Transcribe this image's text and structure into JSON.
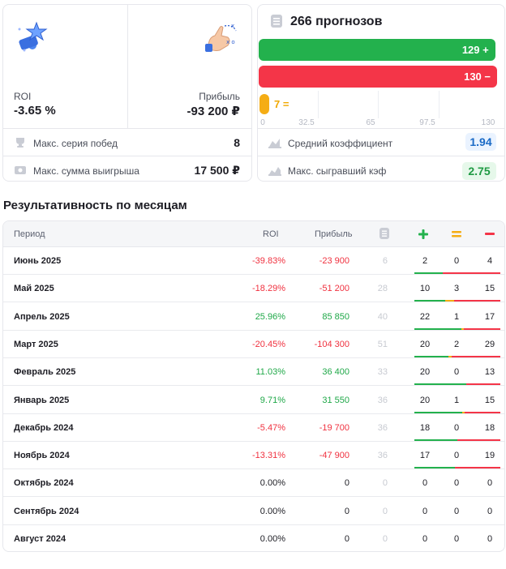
{
  "summary": {
    "roi_label": "ROI",
    "roi_value": "-3.65 %",
    "profit_label": "Прибыль",
    "profit_value": "-93 200 ₽",
    "win_streak_label": "Макс. серия побед",
    "win_streak_value": "8",
    "max_win_label": "Макс. сумма выигрыша",
    "max_win_value": "17 500 ₽"
  },
  "predictions": {
    "title": "266 прогнозов",
    "wins_label": "129 +",
    "losses_label": "130 −",
    "draws_label": "7 =",
    "axis_ticks": [
      "0",
      "32.5",
      "65",
      "97.5",
      "130"
    ],
    "wins": 129,
    "losses": 130,
    "draws": 7,
    "axis_max": 130,
    "avg_coef_label": "Средний коэффициент",
    "avg_coef_value": "1.94",
    "max_coef_label": "Макс. сыгравший кэф",
    "max_coef_value": "2.75"
  },
  "monthly": {
    "title": "Результативность по месяцам",
    "headers": {
      "period": "Период",
      "roi": "ROI",
      "profit": "Прибыль"
    },
    "rows": [
      {
        "period": "Июнь 2025",
        "roi": "-39.83%",
        "profit": "-23 900",
        "total": "6",
        "win": "2",
        "draw": "0",
        "loss": "4",
        "sign": "neg"
      },
      {
        "period": "Май 2025",
        "roi": "-18.29%",
        "profit": "-51 200",
        "total": "28",
        "win": "10",
        "draw": "3",
        "loss": "15",
        "sign": "neg"
      },
      {
        "period": "Апрель 2025",
        "roi": "25.96%",
        "profit": "85 850",
        "total": "40",
        "win": "22",
        "draw": "1",
        "loss": "17",
        "sign": "pos"
      },
      {
        "period": "Март 2025",
        "roi": "-20.45%",
        "profit": "-104 300",
        "total": "51",
        "win": "20",
        "draw": "2",
        "loss": "29",
        "sign": "neg"
      },
      {
        "period": "Февраль 2025",
        "roi": "11.03%",
        "profit": "36 400",
        "total": "33",
        "win": "20",
        "draw": "0",
        "loss": "13",
        "sign": "pos"
      },
      {
        "period": "Январь 2025",
        "roi": "9.71%",
        "profit": "31 550",
        "total": "36",
        "win": "20",
        "draw": "1",
        "loss": "15",
        "sign": "pos"
      },
      {
        "period": "Декабрь 2024",
        "roi": "-5.47%",
        "profit": "-19 700",
        "total": "36",
        "win": "18",
        "draw": "0",
        "loss": "18",
        "sign": "neg"
      },
      {
        "period": "Ноябрь 2024",
        "roi": "-13.31%",
        "profit": "-47 900",
        "total": "36",
        "win": "17",
        "draw": "0",
        "loss": "19",
        "sign": "neg"
      },
      {
        "period": "Октябрь 2024",
        "roi": "0.00%",
        "profit": "0",
        "total": "0",
        "win": "0",
        "draw": "0",
        "loss": "0",
        "sign": "zero"
      },
      {
        "period": "Сентябрь 2024",
        "roi": "0.00%",
        "profit": "0",
        "total": "0",
        "win": "0",
        "draw": "0",
        "loss": "0",
        "sign": "zero"
      },
      {
        "period": "Август 2024",
        "roi": "0.00%",
        "profit": "0",
        "total": "0",
        "win": "0",
        "draw": "0",
        "loss": "0",
        "sign": "zero"
      }
    ]
  },
  "colors": {
    "win": "#23b14d",
    "loss": "#f43548",
    "draw": "#f5ad14"
  }
}
